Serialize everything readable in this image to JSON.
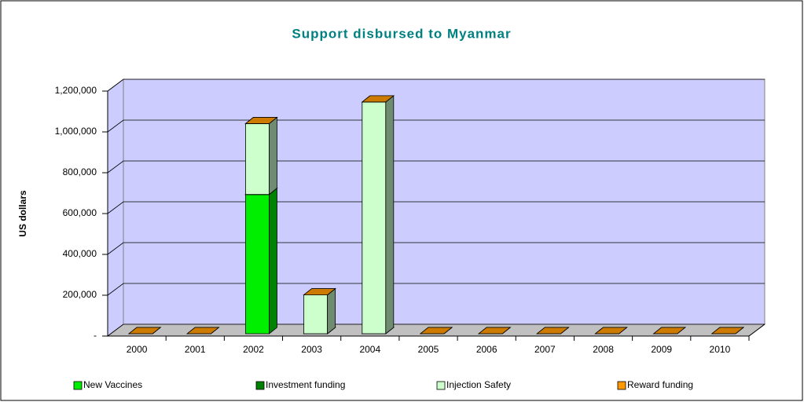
{
  "chart_data": {
    "type": "bar3d_stacked",
    "title": "Support disbursed to Myanmar",
    "ylabel": "US dollars",
    "categories": [
      "2000",
      "2001",
      "2002",
      "2003",
      "2004",
      "2005",
      "2006",
      "2007",
      "2008",
      "2009",
      "2010"
    ],
    "series": [
      {
        "name": "New Vaccines",
        "color": "#00ee00",
        "values": [
          0,
          0,
          682000,
          0,
          0,
          0,
          0,
          0,
          0,
          0,
          0
        ]
      },
      {
        "name": "Investment funding",
        "color": "#008000",
        "values": [
          0,
          0,
          0,
          0,
          0,
          0,
          0,
          0,
          0,
          0,
          0
        ]
      },
      {
        "name": "Injection Safety",
        "color": "#ccffcc",
        "values": [
          0,
          0,
          347000,
          190000,
          1135000,
          0,
          0,
          0,
          0,
          0,
          0
        ]
      },
      {
        "name": "Reward funding",
        "color": "#ff9900",
        "values": [
          0,
          0,
          0,
          0,
          0,
          0,
          0,
          0,
          0,
          0,
          0
        ]
      }
    ],
    "ylim": [
      0,
      1200000
    ],
    "yticks": [
      {
        "value": 0,
        "label": "-"
      },
      {
        "value": 200000,
        "label": "200,000"
      },
      {
        "value": 400000,
        "label": "400,000"
      },
      {
        "value": 600000,
        "label": "600,000"
      },
      {
        "value": 800000,
        "label": "800,000"
      },
      {
        "value": 1000000,
        "label": "1,000,000"
      },
      {
        "value": 1200000,
        "label": "1,200,000"
      }
    ],
    "grid": true,
    "legend": "bottom"
  }
}
